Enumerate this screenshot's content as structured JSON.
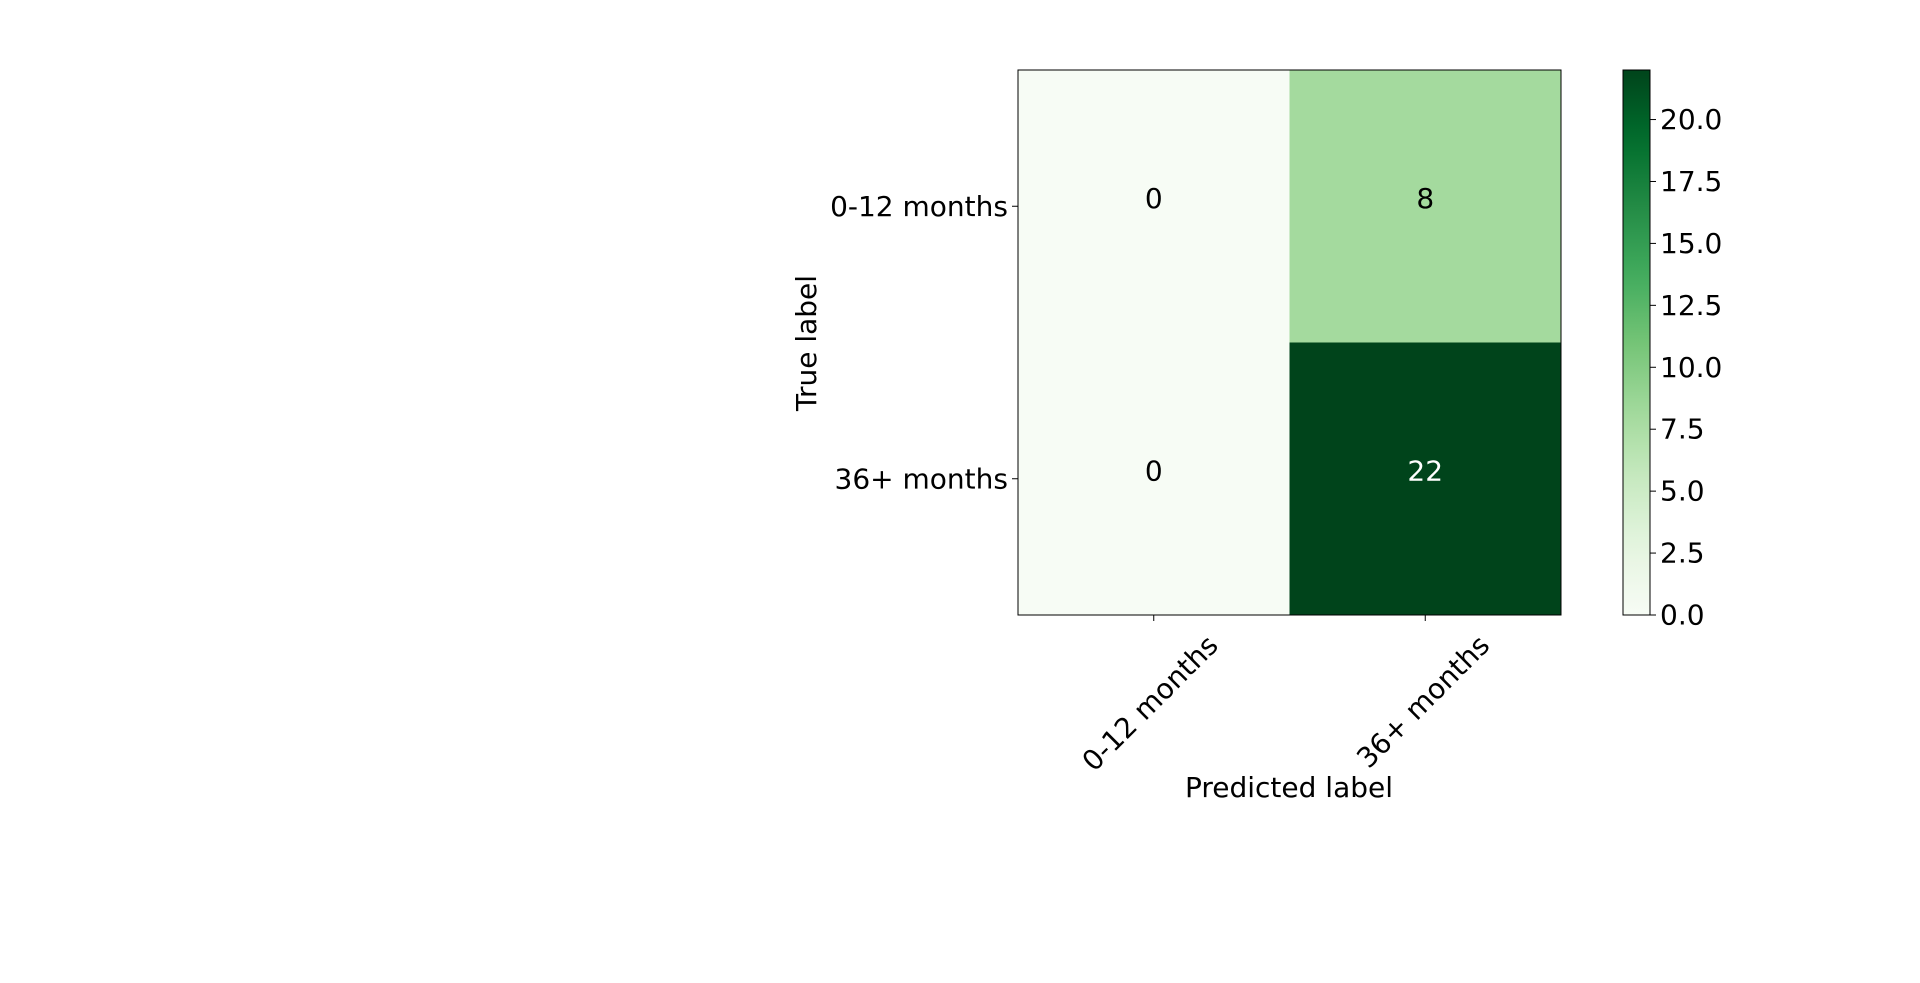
{
  "chart_data": {
    "type": "heatmap",
    "xlabel": "Predicted label",
    "ylabel": "True label",
    "x_categories": [
      "0-12 months",
      "36+ months"
    ],
    "y_categories": [
      "0-12 months",
      "36+ months"
    ],
    "matrix": [
      [
        0,
        8
      ],
      [
        0,
        22
      ]
    ],
    "colormap": "Greens",
    "colorbar": {
      "range": [
        0,
        22
      ],
      "ticks": [
        0.0,
        2.5,
        5.0,
        7.5,
        10.0,
        12.5,
        15.0,
        17.5,
        20.0
      ],
      "tick_labels": [
        "0.0",
        "2.5",
        "5.0",
        "7.5",
        "10.0",
        "12.5",
        "15.0",
        "17.5",
        "20.0"
      ]
    },
    "grid": false
  }
}
